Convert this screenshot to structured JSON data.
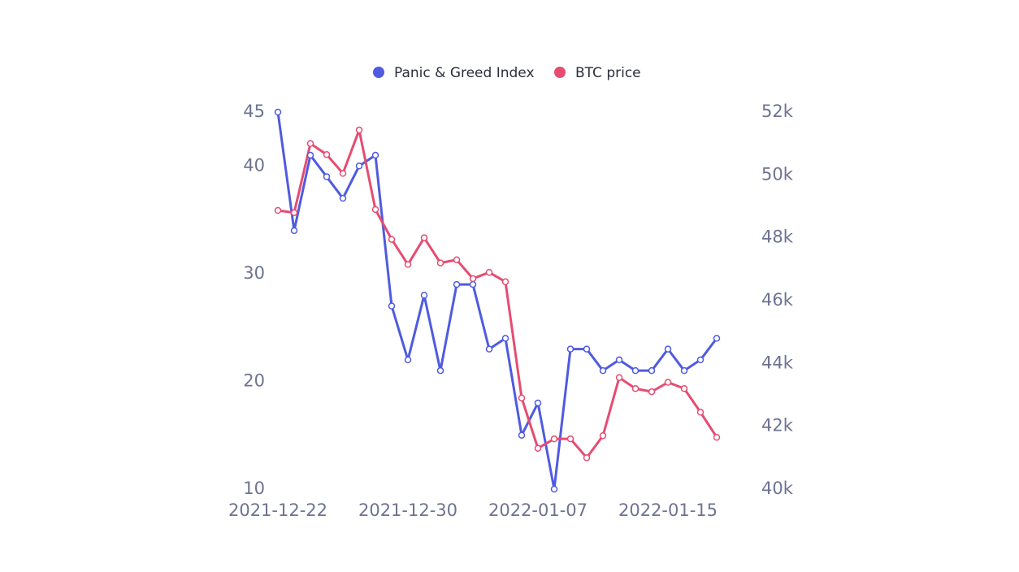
{
  "chart_data": {
    "type": "line",
    "categories": [
      "2021-12-22",
      null,
      null,
      null,
      null,
      null,
      null,
      null,
      "2021-12-30",
      null,
      null,
      null,
      null,
      null,
      null,
      null,
      "2022-01-07",
      null,
      null,
      null,
      null,
      null,
      null,
      null,
      "2022-01-15",
      null,
      null,
      null
    ],
    "series": [
      {
        "name": "Panic & Greed Index",
        "color": "#4f5be0",
        "values": [
          45,
          34,
          41,
          39,
          37,
          40,
          41,
          27,
          22,
          28,
          21,
          29,
          29,
          23,
          24,
          15,
          18,
          10,
          23,
          23,
          21,
          22,
          21,
          21,
          23,
          21,
          22,
          24
        ]
      },
      {
        "name": "BTC price",
        "color": "#e64c72",
        "axis": "y2",
        "values": [
          48870,
          48800,
          51000,
          50650,
          50050,
          51430,
          48900,
          47950,
          47150,
          48000,
          47200,
          47300,
          46700,
          46900,
          46600,
          42900,
          41300,
          41600,
          41600,
          41000,
          41700,
          43550,
          43200,
          43100,
          43400,
          43200,
          42450,
          41650
        ]
      }
    ],
    "ylim": [
      10,
      45
    ],
    "yticks": [
      10,
      20,
      30,
      40,
      45
    ],
    "y2lim": [
      40000,
      52000
    ],
    "y2ticks": [
      {
        "value": 40000,
        "label": "40k"
      },
      {
        "value": 42000,
        "label": "42k"
      },
      {
        "value": 44000,
        "label": "44k"
      },
      {
        "value": 46000,
        "label": "46k"
      },
      {
        "value": 48000,
        "label": "48k"
      },
      {
        "value": 50000,
        "label": "50k"
      },
      {
        "value": 52000,
        "label": "52k"
      }
    ]
  }
}
